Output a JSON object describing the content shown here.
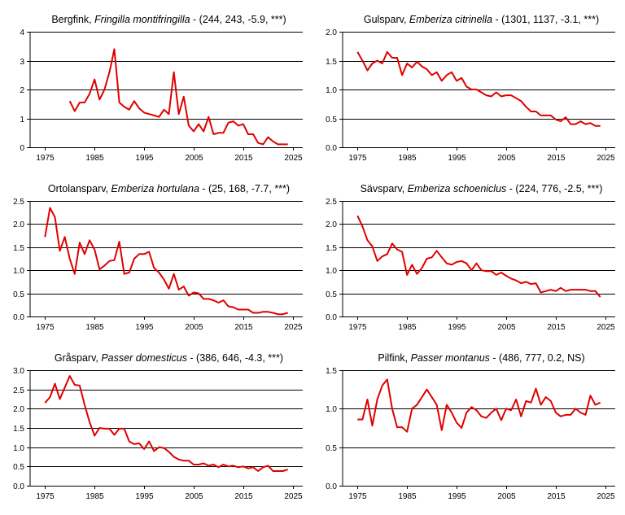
{
  "colors": {
    "series": "#e00000",
    "grid": "#000000",
    "background": "#ffffff"
  },
  "chart_data": [
    {
      "type": "line",
      "title_parts": {
        "common_name": "Bergfink",
        "latin_name": "Fringilla montifringilla",
        "stats": "(244, 243, -5.9, ***)"
      },
      "xlim": [
        1972,
        2027
      ],
      "x_ticks": [
        "1975",
        "1985",
        "1995",
        "2005",
        "2015",
        "2025"
      ],
      "ylim": [
        0,
        4
      ],
      "y_ticks": [
        "0",
        "1",
        "2",
        "3",
        "4"
      ],
      "x": [
        1980,
        1981,
        1982,
        1983,
        1984,
        1985,
        1986,
        1987,
        1988,
        1989,
        1990,
        1991,
        1992,
        1993,
        1994,
        1995,
        1996,
        1997,
        1998,
        1999,
        2000,
        2001,
        2002,
        2003,
        2004,
        2005,
        2006,
        2007,
        2008,
        2009,
        2010,
        2011,
        2012,
        2013,
        2014,
        2015,
        2016,
        2017,
        2018,
        2019,
        2020,
        2021,
        2022,
        2023,
        2024
      ],
      "values": [
        1.6,
        1.25,
        1.55,
        1.55,
        1.85,
        2.35,
        1.65,
        2.0,
        2.6,
        3.4,
        1.55,
        1.4,
        1.3,
        1.6,
        1.35,
        1.2,
        1.15,
        1.1,
        1.05,
        1.3,
        1.15,
        2.6,
        1.15,
        1.75,
        0.75,
        0.55,
        0.8,
        0.55,
        1.05,
        0.45,
        0.5,
        0.5,
        0.85,
        0.9,
        0.75,
        0.8,
        0.45,
        0.45,
        0.15,
        0.1,
        0.35,
        0.2,
        0.1,
        0.1,
        0.1
      ]
    },
    {
      "type": "line",
      "title_parts": {
        "common_name": "Gulsparv",
        "latin_name": "Emberiza citrinella",
        "stats": "(1301, 1137, -3.1, ***)"
      },
      "xlim": [
        1972,
        2027
      ],
      "x_ticks": [
        "1975",
        "1985",
        "1995",
        "2005",
        "2015",
        "2025"
      ],
      "ylim": [
        0,
        2
      ],
      "y_ticks": [
        "0.0",
        "0.5",
        "1.0",
        "1.5",
        "2.0"
      ],
      "x": [
        1975,
        1976,
        1977,
        1978,
        1979,
        1980,
        1981,
        1982,
        1983,
        1984,
        1985,
        1986,
        1987,
        1988,
        1989,
        1990,
        1991,
        1992,
        1993,
        1994,
        1995,
        1996,
        1997,
        1998,
        1999,
        2000,
        2001,
        2002,
        2003,
        2004,
        2005,
        2006,
        2007,
        2008,
        2009,
        2010,
        2011,
        2012,
        2013,
        2014,
        2015,
        2016,
        2017,
        2018,
        2019,
        2020,
        2021,
        2022,
        2023,
        2024
      ],
      "values": [
        1.65,
        1.5,
        1.33,
        1.45,
        1.5,
        1.45,
        1.65,
        1.55,
        1.55,
        1.25,
        1.45,
        1.38,
        1.48,
        1.4,
        1.35,
        1.25,
        1.3,
        1.15,
        1.25,
        1.3,
        1.15,
        1.2,
        1.05,
        1.0,
        1.0,
        0.95,
        0.9,
        0.88,
        0.95,
        0.88,
        0.9,
        0.9,
        0.85,
        0.8,
        0.7,
        0.62,
        0.62,
        0.55,
        0.55,
        0.55,
        0.48,
        0.45,
        0.52,
        0.4,
        0.4,
        0.45,
        0.4,
        0.42,
        0.37,
        0.37
      ]
    },
    {
      "type": "line",
      "title_parts": {
        "common_name": "Ortolansparv",
        "latin_name": "Emberiza hortulana",
        "stats": "(25, 168, -7.7, ***)"
      },
      "xlim": [
        1972,
        2027
      ],
      "x_ticks": [
        "1975",
        "1985",
        "1995",
        "2005",
        "2015",
        "2025"
      ],
      "ylim": [
        0,
        2.5
      ],
      "y_ticks": [
        "0.0",
        "0.5",
        "1.0",
        "1.5",
        "2.0",
        "2.5"
      ],
      "x": [
        1975,
        1976,
        1977,
        1978,
        1979,
        1980,
        1981,
        1982,
        1983,
        1984,
        1985,
        1986,
        1987,
        1988,
        1989,
        1990,
        1991,
        1992,
        1993,
        1994,
        1995,
        1996,
        1997,
        1998,
        1999,
        2000,
        2001,
        2002,
        2003,
        2004,
        2005,
        2006,
        2007,
        2008,
        2009,
        2010,
        2011,
        2012,
        2013,
        2014,
        2015,
        2016,
        2017,
        2018,
        2019,
        2020,
        2021,
        2022,
        2023,
        2024
      ],
      "values": [
        1.72,
        2.35,
        2.15,
        1.42,
        1.72,
        1.25,
        0.92,
        1.6,
        1.35,
        1.65,
        1.45,
        1.02,
        1.1,
        1.2,
        1.22,
        1.62,
        0.92,
        0.95,
        1.25,
        1.35,
        1.35,
        1.4,
        1.05,
        0.95,
        0.8,
        0.6,
        0.92,
        0.58,
        0.65,
        0.45,
        0.52,
        0.5,
        0.38,
        0.38,
        0.35,
        0.3,
        0.35,
        0.22,
        0.2,
        0.15,
        0.15,
        0.15,
        0.08,
        0.08,
        0.1,
        0.1,
        0.08,
        0.05,
        0.05,
        0.08
      ]
    },
    {
      "type": "line",
      "title_parts": {
        "common_name": "Sävsparv",
        "latin_name": "Emberiza schoeniclus",
        "stats": "(224, 776, -2.5, ***)"
      },
      "xlim": [
        1972,
        2027
      ],
      "x_ticks": [
        "1975",
        "1985",
        "1995",
        "2005",
        "2015",
        "2025"
      ],
      "ylim": [
        0,
        2.5
      ],
      "y_ticks": [
        "0.0",
        "0.5",
        "1.0",
        "1.5",
        "2.0",
        "2.5"
      ],
      "x": [
        1975,
        1976,
        1977,
        1978,
        1979,
        1980,
        1981,
        1982,
        1983,
        1984,
        1985,
        1986,
        1987,
        1988,
        1989,
        1990,
        1991,
        1992,
        1993,
        1994,
        1995,
        1996,
        1997,
        1998,
        1999,
        2000,
        2001,
        2002,
        2003,
        2004,
        2005,
        2006,
        2007,
        2008,
        2009,
        2010,
        2011,
        2012,
        2013,
        2014,
        2015,
        2016,
        2017,
        2018,
        2019,
        2020,
        2021,
        2022,
        2023,
        2024
      ],
      "values": [
        2.18,
        1.95,
        1.65,
        1.52,
        1.2,
        1.3,
        1.35,
        1.58,
        1.45,
        1.4,
        0.9,
        1.12,
        0.92,
        1.05,
        1.25,
        1.28,
        1.42,
        1.28,
        1.15,
        1.12,
        1.18,
        1.2,
        1.15,
        1.0,
        1.15,
        1.0,
        0.98,
        0.98,
        0.9,
        0.95,
        0.88,
        0.82,
        0.78,
        0.72,
        0.75,
        0.7,
        0.72,
        0.52,
        0.55,
        0.58,
        0.55,
        0.62,
        0.55,
        0.58,
        0.58,
        0.58,
        0.58,
        0.55,
        0.55,
        0.42
      ]
    },
    {
      "type": "line",
      "title_parts": {
        "common_name": "Gråsparv",
        "latin_name": "Passer domesticus",
        "stats": "(386, 646, -4.3, ***)"
      },
      "xlim": [
        1972,
        2027
      ],
      "x_ticks": [
        "1975",
        "1985",
        "1995",
        "2005",
        "2015",
        "2025"
      ],
      "ylim": [
        0,
        3
      ],
      "y_ticks": [
        "0.0",
        "0.5",
        "1.0",
        "1.5",
        "2.0",
        "2.5",
        "3.0"
      ],
      "x": [
        1975,
        1976,
        1977,
        1978,
        1979,
        1980,
        1981,
        1982,
        1983,
        1984,
        1985,
        1986,
        1987,
        1988,
        1989,
        1990,
        1991,
        1992,
        1993,
        1994,
        1995,
        1996,
        1997,
        1998,
        1999,
        2000,
        2001,
        2002,
        2003,
        2004,
        2005,
        2006,
        2007,
        2008,
        2009,
        2010,
        2011,
        2012,
        2013,
        2014,
        2015,
        2016,
        2017,
        2018,
        2019,
        2020,
        2021,
        2022,
        2023,
        2024
      ],
      "values": [
        2.15,
        2.3,
        2.65,
        2.25,
        2.55,
        2.85,
        2.62,
        2.6,
        2.1,
        1.65,
        1.3,
        1.5,
        1.48,
        1.48,
        1.32,
        1.48,
        1.48,
        1.15,
        1.08,
        1.1,
        0.95,
        1.15,
        0.9,
        1.0,
        0.98,
        0.88,
        0.75,
        0.68,
        0.65,
        0.65,
        0.55,
        0.55,
        0.58,
        0.52,
        0.55,
        0.48,
        0.55,
        0.5,
        0.52,
        0.48,
        0.5,
        0.45,
        0.48,
        0.38,
        0.48,
        0.52,
        0.38,
        0.38,
        0.38,
        0.42
      ]
    },
    {
      "type": "line",
      "title_parts": {
        "common_name": "Pilfink",
        "latin_name": "Passer montanus",
        "stats": "(486, 777, 0.2, NS)"
      },
      "xlim": [
        1972,
        2027
      ],
      "x_ticks": [
        "1975",
        "1985",
        "1995",
        "2005",
        "2015",
        "2025"
      ],
      "ylim": [
        0,
        1.5
      ],
      "y_ticks": [
        "0.0",
        "0.5",
        "1.0",
        "1.5"
      ],
      "x": [
        1975,
        1976,
        1977,
        1978,
        1979,
        1980,
        1981,
        1982,
        1983,
        1984,
        1985,
        1986,
        1987,
        1988,
        1989,
        1990,
        1991,
        1992,
        1993,
        1994,
        1995,
        1996,
        1997,
        1998,
        1999,
        2000,
        2001,
        2002,
        2003,
        2004,
        2005,
        2006,
        2007,
        2008,
        2009,
        2010,
        2011,
        2012,
        2013,
        2014,
        2015,
        2016,
        2017,
        2018,
        2019,
        2020,
        2021,
        2022,
        2023,
        2024
      ],
      "values": [
        0.86,
        0.86,
        1.12,
        0.78,
        1.12,
        1.3,
        1.38,
        1.0,
        0.76,
        0.76,
        0.7,
        1.0,
        1.05,
        1.15,
        1.25,
        1.15,
        1.05,
        0.72,
        1.05,
        0.95,
        0.82,
        0.75,
        0.95,
        1.02,
        0.98,
        0.9,
        0.88,
        0.95,
        1.0,
        0.85,
        1.0,
        0.98,
        1.12,
        0.9,
        1.1,
        1.08,
        1.26,
        1.05,
        1.15,
        1.1,
        0.95,
        0.9,
        0.92,
        0.92,
        1.0,
        0.95,
        0.92,
        1.17,
        1.05,
        1.08
      ]
    }
  ]
}
